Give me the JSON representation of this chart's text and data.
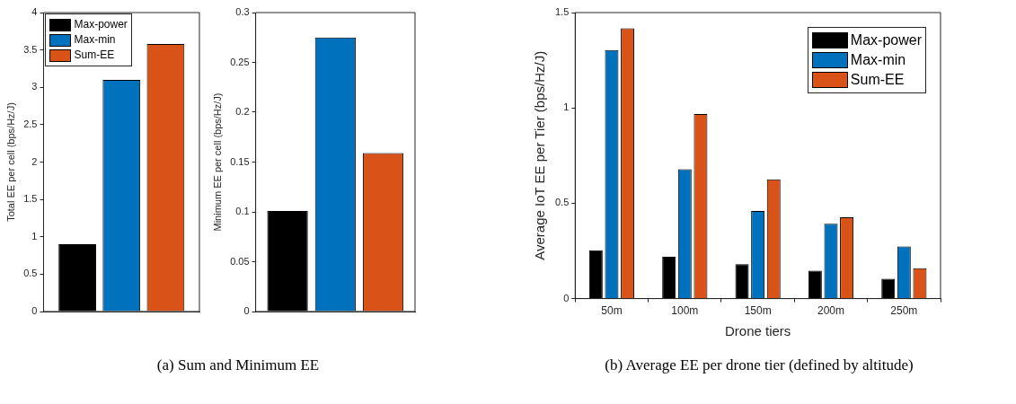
{
  "chart_data": [
    {
      "type": "bar",
      "categories": [
        null
      ],
      "ylabel": "Total EE per cell (bps/Hz/J)",
      "ylim": [
        0,
        4
      ],
      "yticks": [
        0,
        0.5,
        1,
        1.5,
        2,
        2.5,
        3,
        3.5,
        4
      ],
      "tick_labels": "y",
      "legend": "top left",
      "annotations": [
        "(a) Sum and Minimum EE"
      ],
      "series": [
        {
          "name": "Max-power",
          "color": "#000000",
          "values": [
            0.9
          ]
        },
        {
          "name": "Max-min",
          "color": "#0072bd",
          "values": [
            3.1
          ]
        },
        {
          "name": "Sum-EE",
          "color": "#d95319",
          "values": [
            3.58
          ]
        }
      ]
    },
    {
      "type": "bar",
      "categories": [
        null
      ],
      "ylabel": "Minimum EE per cell (bps/Hz/J)",
      "ylim": [
        0,
        0.3
      ],
      "yticks": [
        0,
        0.05,
        0.1,
        0.15,
        0.2,
        0.25,
        0.3
      ],
      "tick_labels": "y",
      "series": [
        {
          "color": "#000000",
          "values": [
            0.101
          ]
        },
        {
          "color": "#0072bd",
          "values": [
            0.275
          ]
        },
        {
          "color": "#d95319",
          "values": [
            0.159
          ]
        }
      ]
    },
    {
      "type": "bar",
      "categories": [
        "50m",
        "100m",
        "150m",
        "200m",
        "250m"
      ],
      "xlabel": "Drone tiers",
      "ylabel": "Average IoT EE per Tier (bps/Hz/J)",
      "ylim": [
        0,
        1.5
      ],
      "yticks": [
        0,
        0.5,
        1,
        1.5
      ],
      "legend": "top right",
      "annotations": [
        "(b) Average EE per drone tier (defined by altitude)"
      ],
      "series": [
        {
          "name": "Max-power",
          "color": "#000000",
          "values": [
            0.254,
            0.219,
            0.18,
            0.147,
            0.104
          ]
        },
        {
          "name": "Max-min",
          "color": "#0072bd",
          "values": [
            1.303,
            0.678,
            0.459,
            0.393,
            0.274
          ]
        },
        {
          "name": "Sum-EE",
          "color": "#d95319",
          "values": [
            1.418,
            0.968,
            0.625,
            0.427,
            0.159
          ]
        }
      ]
    }
  ]
}
